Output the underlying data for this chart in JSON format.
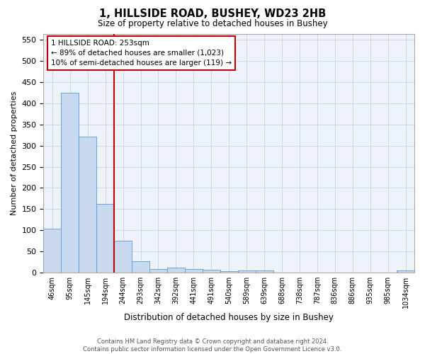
{
  "title_line1": "1, HILLSIDE ROAD, BUSHEY, WD23 2HB",
  "title_line2": "Size of property relative to detached houses in Bushey",
  "xlabel": "Distribution of detached houses by size in Bushey",
  "ylabel": "Number of detached properties",
  "categories": [
    "46sqm",
    "95sqm",
    "145sqm",
    "194sqm",
    "244sqm",
    "293sqm",
    "342sqm",
    "392sqm",
    "441sqm",
    "491sqm",
    "540sqm",
    "589sqm",
    "639sqm",
    "688sqm",
    "738sqm",
    "787sqm",
    "836sqm",
    "886sqm",
    "935sqm",
    "985sqm",
    "1034sqm"
  ],
  "values": [
    104,
    425,
    322,
    163,
    75,
    26,
    9,
    11,
    9,
    7,
    3,
    5,
    5,
    0,
    0,
    0,
    0,
    0,
    0,
    0,
    5
  ],
  "bar_color": "#c8d9ef",
  "bar_edge_color": "#5b9bd5",
  "grid_color": "#c9d8eb",
  "background_color": "#eef2f9",
  "vline_x": 3.5,
  "vline_color": "#c00000",
  "annotation_text": "1 HILLSIDE ROAD: 253sqm\n← 89% of detached houses are smaller (1,023)\n10% of semi-detached houses are larger (119) →",
  "annotation_box_color": "#c00000",
  "ylim": [
    0,
    565
  ],
  "yticks": [
    0,
    50,
    100,
    150,
    200,
    250,
    300,
    350,
    400,
    450,
    500,
    550
  ],
  "footer_line1": "Contains HM Land Registry data © Crown copyright and database right 2024.",
  "footer_line2": "Contains public sector information licensed under the Open Government Licence v3.0."
}
